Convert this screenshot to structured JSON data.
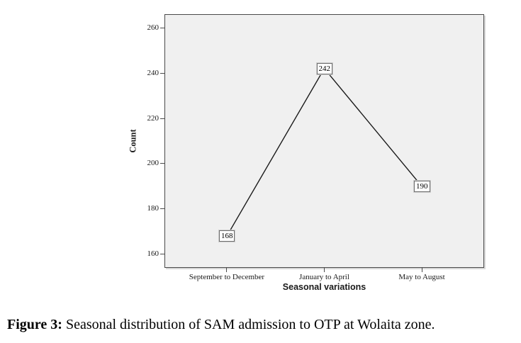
{
  "chart_data": {
    "type": "line",
    "title": "",
    "categories": [
      "September to December",
      "January to April",
      "May to August"
    ],
    "values": [
      168,
      242,
      190
    ],
    "xlabel": "Seasonal variations",
    "ylabel": "Count",
    "yticks": [
      160,
      180,
      200,
      220,
      240,
      260
    ],
    "ylim": [
      154,
      266
    ],
    "grid": false,
    "legend": "none",
    "marker_labels": [
      "168",
      "242",
      "190"
    ]
  },
  "caption": {
    "prefix": "Figure 3:",
    "text": " Seasonal distribution of SAM admission to OTP at Wolaita zone."
  },
  "colors": {
    "plot_bg": "#f0f0f0",
    "plot_border": "#4a4a4a",
    "line": "#1a1a1a",
    "label_box_bg": "#ffffff",
    "label_box_border": "#6e6e6e",
    "text": "#000000"
  }
}
